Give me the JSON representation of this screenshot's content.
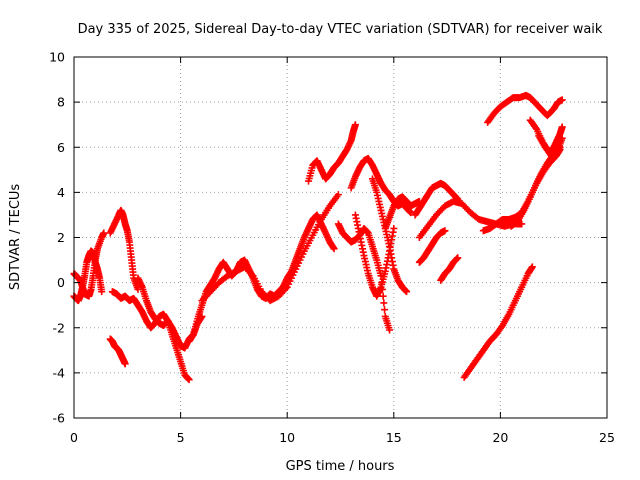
{
  "chart_data": {
    "type": "scatter",
    "title": "Day 335 of 2025, Sidereal Day-to-day VTEC variation (SDTVAR) for receiver waik",
    "xlabel": "GPS time / hours",
    "ylabel": "SDTVAR / TECUs",
    "xlim": [
      0,
      25
    ],
    "ylim": [
      -6,
      10
    ],
    "x_ticks": [
      0,
      5,
      10,
      15,
      20,
      25
    ],
    "y_ticks": [
      -6,
      -4,
      -2,
      0,
      2,
      4,
      6,
      8,
      10
    ],
    "x_tick_labels": [
      "0",
      "5",
      "10",
      "15",
      "20",
      "25"
    ],
    "y_tick_labels": [
      "-6",
      "-4",
      "-2",
      "0",
      "2",
      "4",
      "6",
      "8",
      "10"
    ],
    "grid": true,
    "marker": "plus",
    "color": "#ff0000",
    "series": [
      {
        "x": [
          0.0,
          0.1,
          0.2,
          0.3,
          0.4,
          0.5,
          0.6,
          0.7,
          0.8,
          0.9,
          1.0,
          1.1,
          1.2,
          1.3
        ],
        "y": [
          -0.6,
          -0.7,
          -0.8,
          -0.6,
          -0.2,
          0.3,
          0.9,
          1.2,
          1.4,
          1.3,
          0.9,
          0.6,
          0.2,
          -0.4
        ]
      },
      {
        "x": [
          0.0,
          0.1,
          0.3,
          0.4,
          0.5,
          0.7,
          0.8,
          0.9,
          1.0,
          1.1,
          1.3,
          1.4
        ],
        "y": [
          0.4,
          0.3,
          0.1,
          -0.2,
          -0.5,
          -0.6,
          -0.3,
          0.3,
          1.0,
          1.5,
          2.0,
          2.2
        ]
      },
      {
        "x": [
          1.7,
          1.9,
          2.1,
          2.2,
          2.3,
          2.4,
          2.5,
          2.6,
          2.7,
          2.8,
          3.0
        ],
        "y": [
          2.2,
          2.6,
          3.0,
          3.2,
          3.0,
          2.6,
          2.3,
          1.8,
          1.0,
          0.2,
          -0.3
        ]
      },
      {
        "x": [
          1.8,
          2.0,
          2.2,
          2.4,
          2.6,
          2.8,
          3.0,
          3.2,
          3.4,
          3.6,
          3.8,
          4.0,
          4.2,
          4.4,
          4.6,
          4.8,
          5.0,
          5.2,
          5.4,
          5.6,
          5.8,
          6.0
        ],
        "y": [
          -0.4,
          -0.5,
          -0.7,
          -0.6,
          -0.8,
          -0.7,
          -1.0,
          -1.3,
          -1.7,
          -2.0,
          -1.8,
          -1.5,
          -1.4,
          -1.7,
          -2.0,
          -2.4,
          -2.8,
          -2.9,
          -2.5,
          -2.3,
          -1.8,
          -1.5
        ]
      },
      {
        "x": [
          3.0,
          3.2,
          3.4,
          3.6,
          3.8,
          4.0,
          4.2,
          4.4,
          4.6,
          4.8,
          5.0,
          5.2,
          5.4
        ],
        "y": [
          0.2,
          -0.2,
          -0.8,
          -1.3,
          -1.6,
          -1.8,
          -1.9,
          -1.7,
          -2.3,
          -2.9,
          -3.5,
          -4.1,
          -4.3
        ]
      },
      {
        "x": [
          1.7,
          1.8,
          1.9,
          2.0,
          2.1,
          2.2,
          2.3,
          2.4
        ],
        "y": [
          -2.5,
          -2.6,
          -2.8,
          -2.9,
          -3.0,
          -3.2,
          -3.4,
          -3.6
        ]
      },
      {
        "x": [
          5.4,
          5.6,
          5.8,
          6.0,
          6.2,
          6.4,
          6.6,
          6.8,
          7.0,
          7.2,
          7.4,
          7.6,
          7.8,
          8.0,
          8.2,
          8.4,
          8.6,
          8.8,
          9.0,
          9.2,
          9.4,
          9.6,
          9.8,
          10.0,
          10.2,
          10.4,
          10.6,
          10.8,
          11.0,
          11.2,
          11.4,
          11.6,
          11.8,
          12.0,
          12.2
        ],
        "y": [
          -2.6,
          -2.3,
          -1.6,
          -1.0,
          -0.4,
          -0.1,
          0.2,
          0.6,
          0.9,
          0.6,
          0.3,
          0.5,
          0.9,
          1.0,
          0.6,
          0.2,
          -0.3,
          -0.6,
          -0.7,
          -0.5,
          -0.6,
          -0.4,
          -0.2,
          0.2,
          0.5,
          1.0,
          1.5,
          2.0,
          2.4,
          2.8,
          3.0,
          2.6,
          2.2,
          1.8,
          1.5
        ]
      },
      {
        "x": [
          6.0,
          6.4,
          6.8,
          7.2,
          7.6,
          8.0,
          8.4,
          8.8,
          9.2,
          9.6,
          10.0,
          10.4,
          10.8,
          11.2,
          11.6,
          12.0,
          12.4
        ],
        "y": [
          -0.8,
          -0.4,
          0.0,
          0.3,
          0.5,
          0.7,
          0.3,
          -0.4,
          -0.8,
          -0.6,
          -0.2,
          0.6,
          1.4,
          2.1,
          2.8,
          3.4,
          3.9
        ]
      },
      {
        "x": [
          11.0,
          11.2,
          11.4,
          11.6,
          11.8,
          12.0,
          12.2,
          12.4,
          12.6,
          12.8,
          13.0,
          13.1,
          13.2
        ],
        "y": [
          4.5,
          5.2,
          5.4,
          5.0,
          4.6,
          4.8,
          5.1,
          5.3,
          5.6,
          5.9,
          6.3,
          6.7,
          7.0
        ]
      },
      {
        "x": [
          12.4,
          12.6,
          12.8,
          13.0,
          13.2,
          13.4,
          13.6,
          13.8,
          14.0,
          14.2,
          14.4,
          14.6,
          14.8
        ],
        "y": [
          2.6,
          2.2,
          2.0,
          1.8,
          1.9,
          2.1,
          2.4,
          2.2,
          1.6,
          1.0,
          0.3,
          -1.5,
          -2.1
        ]
      },
      {
        "x": [
          13.0,
          13.2,
          13.4,
          13.6,
          13.8,
          14.0,
          14.2,
          14.4,
          14.6,
          14.8,
          15.0,
          15.2,
          15.4,
          15.6,
          15.8
        ],
        "y": [
          4.2,
          4.7,
          5.1,
          5.4,
          5.5,
          5.2,
          4.8,
          4.4,
          4.1,
          3.9,
          3.6,
          3.4,
          3.5,
          3.3,
          3.1
        ]
      },
      {
        "x": [
          13.2,
          13.4,
          13.6,
          13.8,
          14.0,
          14.2,
          14.4,
          14.6,
          14.8,
          15.0
        ],
        "y": [
          3.0,
          2.1,
          1.2,
          0.4,
          -0.2,
          -0.6,
          -0.2,
          0.5,
          1.4,
          2.4
        ]
      },
      {
        "x": [
          14.0,
          14.2,
          14.4,
          14.6,
          14.8,
          15.0,
          15.2,
          15.4,
          15.6
        ],
        "y": [
          4.6,
          4.0,
          3.2,
          2.4,
          1.6,
          0.6,
          0.1,
          -0.2,
          -0.4
        ]
      },
      {
        "x": [
          14.6,
          14.8,
          15.0,
          15.2,
          15.4,
          15.6,
          15.8,
          16.0,
          16.2
        ],
        "y": [
          2.4,
          2.9,
          3.4,
          3.7,
          3.8,
          3.6,
          3.4,
          3.5,
          3.6
        ]
      },
      {
        "x": [
          16.0,
          16.2,
          16.4,
          16.6,
          16.8,
          17.0,
          17.2,
          17.4,
          17.6,
          17.8,
          18.0
        ],
        "y": [
          3.0,
          3.3,
          3.6,
          3.9,
          4.2,
          4.3,
          4.4,
          4.3,
          4.1,
          3.9,
          3.7
        ]
      },
      {
        "x": [
          16.2,
          16.6,
          17.0,
          17.4,
          17.8,
          18.2,
          18.6,
          19.0,
          19.4,
          19.8,
          20.2,
          20.6,
          21.0
        ],
        "y": [
          2.0,
          2.5,
          3.0,
          3.4,
          3.6,
          3.5,
          3.1,
          2.8,
          2.7,
          2.6,
          2.5,
          2.6,
          2.6
        ]
      },
      {
        "x": [
          16.2,
          16.4,
          16.6,
          16.8,
          17.0,
          17.2,
          17.4
        ],
        "y": [
          0.9,
          1.1,
          1.4,
          1.7,
          2.0,
          2.2,
          2.3
        ]
      },
      {
        "x": [
          17.2,
          17.4,
          17.6,
          17.8,
          18.0
        ],
        "y": [
          0.1,
          0.4,
          0.6,
          0.9,
          1.1
        ]
      },
      {
        "x": [
          18.3,
          18.6,
          18.9,
          19.2,
          19.5,
          19.8,
          20.1,
          20.4,
          20.7,
          21.0,
          21.3,
          21.5
        ],
        "y": [
          -4.2,
          -3.8,
          -3.4,
          -3.0,
          -2.6,
          -2.3,
          -1.9,
          -1.4,
          -0.8,
          -0.2,
          0.4,
          0.7
        ]
      },
      {
        "x": [
          19.2,
          19.5,
          19.8,
          20.1,
          20.4,
          20.7,
          21.0,
          21.3,
          21.6,
          21.9,
          22.2,
          22.5,
          22.8
        ],
        "y": [
          2.3,
          2.4,
          2.6,
          2.8,
          2.8,
          2.9,
          3.1,
          3.6,
          4.2,
          4.8,
          5.3,
          5.7,
          6.0
        ]
      },
      {
        "x": [
          20.5,
          20.8,
          21.1,
          21.4,
          21.7,
          22.0,
          22.3,
          22.6,
          22.8
        ],
        "y": [
          2.5,
          2.7,
          3.2,
          3.8,
          4.4,
          4.9,
          5.3,
          5.6,
          5.9
        ]
      },
      {
        "x": [
          19.4,
          19.7,
          20.0,
          20.3,
          20.6,
          20.9,
          21.2,
          21.4,
          21.6,
          21.9,
          22.2,
          22.5,
          22.7,
          22.9
        ],
        "y": [
          7.1,
          7.5,
          7.8,
          8.0,
          8.2,
          8.2,
          8.3,
          8.2,
          8.0,
          7.7,
          7.4,
          7.7,
          8.0,
          8.1
        ]
      },
      {
        "x": [
          21.4,
          21.7,
          22.0,
          22.2,
          22.4,
          22.6,
          22.8,
          22.9
        ],
        "y": [
          7.2,
          6.8,
          6.2,
          5.9,
          5.8,
          6.2,
          6.6,
          6.9
        ]
      },
      {
        "x": [
          21.8,
          22.1,
          22.4,
          22.7,
          22.9
        ],
        "y": [
          6.5,
          6.0,
          5.6,
          5.9,
          6.4
        ]
      }
    ]
  }
}
